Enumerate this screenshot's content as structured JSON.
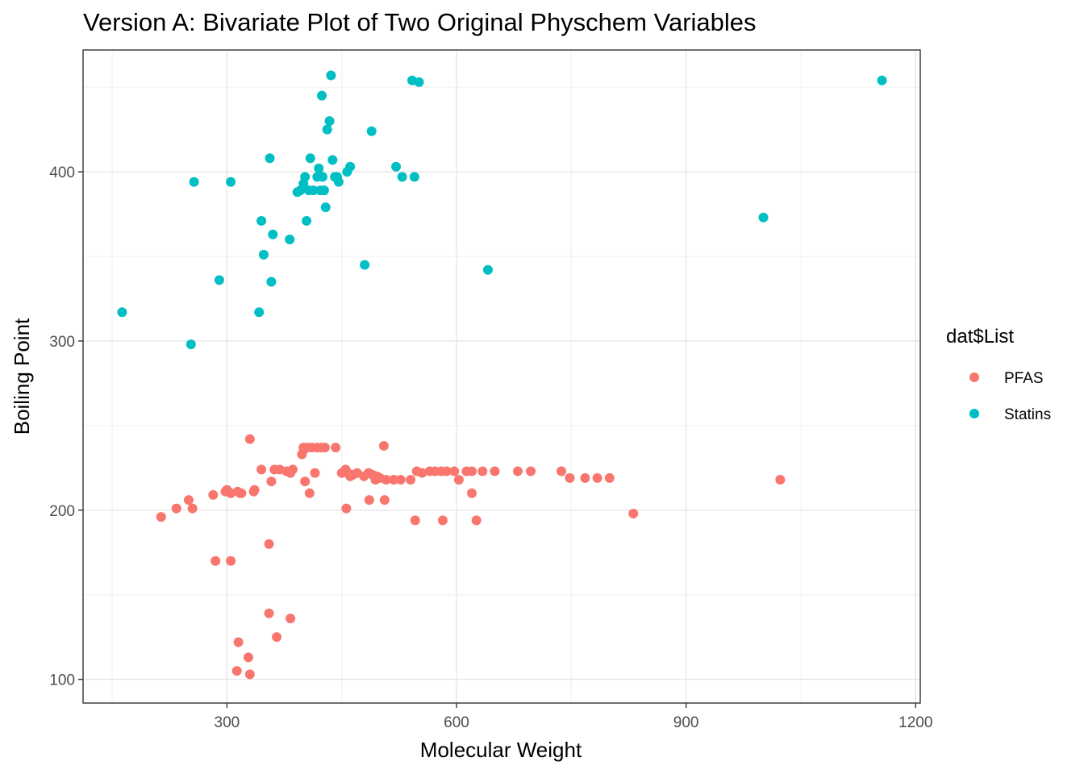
{
  "chart_data": {
    "type": "scatter",
    "title": "Version A: Bivariate Plot of Two Original Physchem Variables",
    "xlabel": "Molecular Weight",
    "ylabel": "Boiling Point",
    "xlim": [
      112,
      1206
    ],
    "ylim": [
      86,
      472
    ],
    "x_ticks": [
      300,
      600,
      900,
      1200
    ],
    "x_tick_labels": [
      "300",
      "600",
      "900",
      "1200"
    ],
    "y_ticks": [
      100,
      200,
      300,
      400
    ],
    "y_tick_labels": [
      "100",
      "200",
      "300",
      "400"
    ],
    "grid": true,
    "legend": {
      "title": "dat$List",
      "position": "right"
    },
    "series": [
      {
        "name": "PFAS",
        "color": "#F8766D",
        "points": [
          [
            214,
            196
          ],
          [
            234,
            201
          ],
          [
            250,
            206
          ],
          [
            255,
            201
          ],
          [
            282,
            209
          ],
          [
            298,
            211
          ],
          [
            300,
            212
          ],
          [
            305,
            210
          ],
          [
            314,
            211
          ],
          [
            317,
            210
          ],
          [
            319,
            210
          ],
          [
            330,
            242
          ],
          [
            335,
            211
          ],
          [
            336,
            212
          ],
          [
            345,
            224
          ],
          [
            358,
            217
          ],
          [
            362,
            224
          ],
          [
            369,
            224
          ],
          [
            378,
            223
          ],
          [
            383,
            222
          ],
          [
            386,
            224
          ],
          [
            398,
            233
          ],
          [
            400,
            237
          ],
          [
            401,
            236
          ],
          [
            402,
            217
          ],
          [
            405,
            237
          ],
          [
            408,
            210
          ],
          [
            411,
            237
          ],
          [
            415,
            222
          ],
          [
            418,
            237
          ],
          [
            423,
            237
          ],
          [
            428,
            237
          ],
          [
            442,
            237
          ],
          [
            450,
            222
          ],
          [
            455,
            224
          ],
          [
            458,
            222
          ],
          [
            461,
            220
          ],
          [
            465,
            221
          ],
          [
            470,
            222
          ],
          [
            479,
            220
          ],
          [
            485,
            222
          ],
          [
            490,
            221
          ],
          [
            494,
            218
          ],
          [
            496,
            220
          ],
          [
            500,
            219
          ],
          [
            505,
            238
          ],
          [
            508,
            218
          ],
          [
            518,
            218
          ],
          [
            527,
            218
          ],
          [
            540,
            218
          ],
          [
            548,
            223
          ],
          [
            555,
            222
          ],
          [
            565,
            223
          ],
          [
            572,
            223
          ],
          [
            580,
            223
          ],
          [
            587,
            223
          ],
          [
            597,
            223
          ],
          [
            603,
            218
          ],
          [
            613,
            223
          ],
          [
            620,
            223
          ],
          [
            634,
            223
          ],
          [
            650,
            223
          ],
          [
            680,
            223
          ],
          [
            697,
            223
          ],
          [
            737,
            223
          ],
          [
            748,
            219
          ],
          [
            768,
            219
          ],
          [
            784,
            219
          ],
          [
            800,
            219
          ],
          [
            831,
            198
          ],
          [
            1023,
            218
          ],
          [
            285,
            170
          ],
          [
            305,
            170
          ],
          [
            355,
            180
          ],
          [
            315,
            122
          ],
          [
            328,
            113
          ],
          [
            355,
            139
          ],
          [
            365,
            125
          ],
          [
            383,
            136
          ],
          [
            313,
            105
          ],
          [
            330,
            103
          ],
          [
            486,
            206
          ],
          [
            506,
            206
          ],
          [
            456,
            201
          ],
          [
            546,
            194
          ],
          [
            582,
            194
          ],
          [
            626,
            194
          ],
          [
            620,
            210
          ]
        ]
      },
      {
        "name": "Statins",
        "color": "#00BFC4",
        "points": [
          [
            163,
            317
          ],
          [
            257,
            394
          ],
          [
            253,
            298
          ],
          [
            290,
            336
          ],
          [
            305,
            394
          ],
          [
            342,
            317
          ],
          [
            345,
            371
          ],
          [
            348,
            351
          ],
          [
            356,
            408
          ],
          [
            358,
            335
          ],
          [
            360,
            363
          ],
          [
            382,
            360
          ],
          [
            392,
            388
          ],
          [
            396,
            389
          ],
          [
            400,
            393
          ],
          [
            402,
            397
          ],
          [
            404,
            371
          ],
          [
            407,
            389
          ],
          [
            409,
            408
          ],
          [
            413,
            389
          ],
          [
            418,
            397
          ],
          [
            420,
            402
          ],
          [
            422,
            389
          ],
          [
            425,
            397
          ],
          [
            427,
            389
          ],
          [
            429,
            379
          ],
          [
            431,
            425
          ],
          [
            434,
            430
          ],
          [
            436,
            457
          ],
          [
            438,
            407
          ],
          [
            441,
            397
          ],
          [
            444,
            397
          ],
          [
            446,
            394
          ],
          [
            457,
            400
          ],
          [
            461,
            403
          ],
          [
            424,
            445
          ],
          [
            480,
            345
          ],
          [
            489,
            424
          ],
          [
            521,
            403
          ],
          [
            529,
            397
          ],
          [
            542,
            454
          ],
          [
            545,
            397
          ],
          [
            551,
            453
          ],
          [
            641,
            342
          ],
          [
            1001,
            373
          ],
          [
            1156,
            454
          ]
        ]
      }
    ]
  }
}
